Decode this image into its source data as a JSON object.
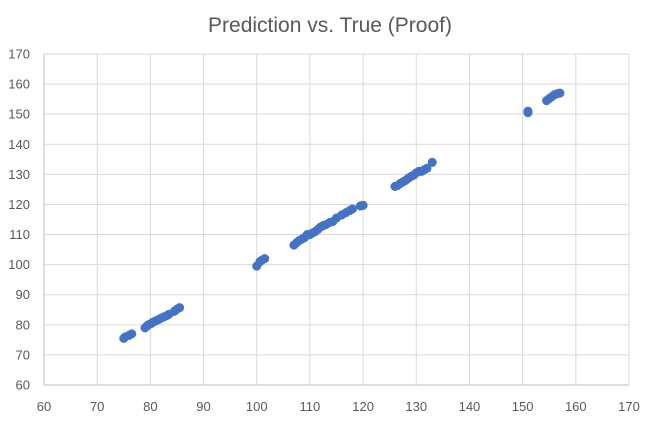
{
  "chart_data": {
    "type": "scatter",
    "title": "Prediction vs. True (Proof)",
    "xlabel": "",
    "ylabel": "",
    "xlim": [
      60,
      170
    ],
    "ylim": [
      60,
      170
    ],
    "x_ticks": [
      60,
      70,
      80,
      90,
      100,
      110,
      120,
      130,
      140,
      150,
      160,
      170
    ],
    "y_ticks": [
      60,
      70,
      80,
      90,
      100,
      110,
      120,
      130,
      140,
      150,
      160,
      170
    ],
    "grid": true,
    "legend": "none",
    "marker_color": "#4472c4",
    "series": [
      {
        "points": [
          [
            75,
            75.5
          ],
          [
            75.3,
            76
          ],
          [
            76,
            76.5
          ],
          [
            76.5,
            77
          ],
          [
            79,
            79
          ],
          [
            79.3,
            79.5
          ],
          [
            79.6,
            80
          ],
          [
            80,
            80.3
          ],
          [
            80.3,
            80.6
          ],
          [
            80.6,
            81
          ],
          [
            81,
            81.3
          ],
          [
            81.5,
            81.7
          ],
          [
            82,
            82.2
          ],
          [
            82.5,
            82.6
          ],
          [
            83,
            83
          ],
          [
            83.5,
            83.5
          ],
          [
            84.5,
            84.5
          ],
          [
            85,
            85.2
          ],
          [
            85.5,
            85.7
          ],
          [
            100,
            99.5
          ],
          [
            100.6,
            101
          ],
          [
            101,
            101.5
          ],
          [
            101.5,
            102
          ],
          [
            107,
            106.5
          ],
          [
            107.5,
            107.3
          ],
          [
            108,
            108
          ],
          [
            108.5,
            108.5
          ],
          [
            109,
            109
          ],
          [
            109.5,
            110
          ],
          [
            110,
            110
          ],
          [
            110.5,
            110.5
          ],
          [
            111,
            111
          ],
          [
            111.5,
            111.7
          ],
          [
            112,
            112.5
          ],
          [
            112.5,
            113
          ],
          [
            113,
            113.3
          ],
          [
            113.7,
            114
          ],
          [
            114.3,
            114.3
          ],
          [
            115,
            115.5
          ],
          [
            116,
            116.5
          ],
          [
            116.8,
            117.3
          ],
          [
            117.5,
            118
          ],
          [
            118,
            118.5
          ],
          [
            119.5,
            119.5
          ],
          [
            120,
            119.7
          ],
          [
            126,
            126
          ],
          [
            126.5,
            126.3
          ],
          [
            127,
            127
          ],
          [
            127.5,
            127.5
          ],
          [
            128,
            128
          ],
          [
            128.5,
            128.7
          ],
          [
            129,
            129.3
          ],
          [
            129.5,
            129.7
          ],
          [
            130,
            130.5
          ],
          [
            130.5,
            131
          ],
          [
            131,
            131
          ],
          [
            131.5,
            131.5
          ],
          [
            132,
            132
          ],
          [
            133,
            134
          ],
          [
            151,
            151
          ],
          [
            151,
            150.5
          ],
          [
            154.5,
            154.5
          ],
          [
            155,
            155.2
          ],
          [
            155.5,
            155.8
          ],
          [
            156,
            156.5
          ],
          [
            156.5,
            156.8
          ],
          [
            157,
            157
          ]
        ]
      }
    ]
  }
}
